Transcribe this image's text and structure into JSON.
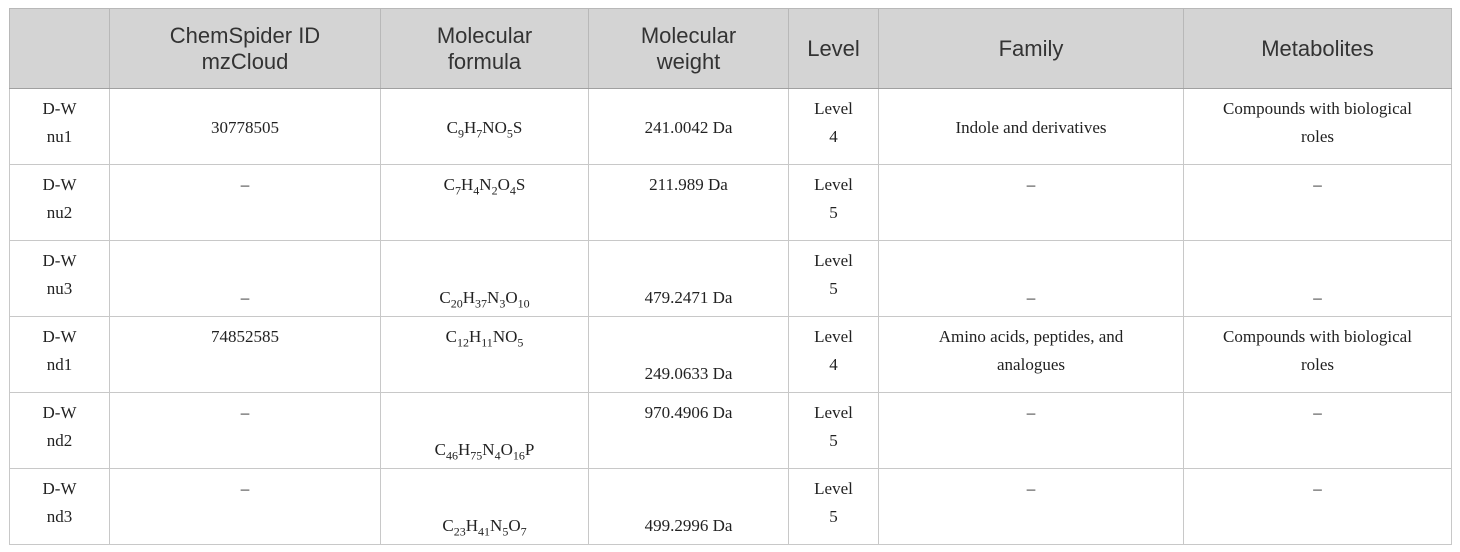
{
  "headers": {
    "sample": "",
    "chemspider": [
      "ChemSpider ID",
      "mzCloud"
    ],
    "formula": [
      "Molecular",
      "formula"
    ],
    "weight": [
      "Molecular",
      "weight"
    ],
    "level": "Level",
    "family": "Family",
    "metabolites": "Metabolites"
  },
  "rows": [
    {
      "sample": [
        "D-W",
        "nu1"
      ],
      "id": "30778505",
      "formula": [
        [
          "C",
          ""
        ],
        [
          "9",
          true
        ],
        [
          "H",
          ""
        ],
        [
          "7",
          true
        ],
        [
          "NO",
          ""
        ],
        [
          "5",
          true
        ],
        [
          "S",
          ""
        ]
      ],
      "weight": "241.0042 Da",
      "level": [
        "Level",
        "4"
      ],
      "family": [
        "Indole and derivatives"
      ],
      "metabolites": [
        "Compounds with biological",
        "roles"
      ]
    },
    {
      "sample": [
        "D-W",
        "nu2"
      ],
      "id": "–",
      "formula": [
        [
          "C",
          ""
        ],
        [
          "7",
          true
        ],
        [
          "H",
          ""
        ],
        [
          "4",
          true
        ],
        [
          "N",
          ""
        ],
        [
          "2",
          true
        ],
        [
          "O",
          ""
        ],
        [
          "4",
          true
        ],
        [
          "S",
          ""
        ]
      ],
      "weight": "211.989 Da",
      "level": [
        "Level",
        "5"
      ],
      "family": [
        "–"
      ],
      "metabolites": [
        "–"
      ]
    },
    {
      "sample": [
        "D-W",
        "nu3"
      ],
      "id": "–",
      "formula": [
        [
          "C",
          ""
        ],
        [
          "20",
          true
        ],
        [
          "H",
          ""
        ],
        [
          "37",
          true
        ],
        [
          "N",
          ""
        ],
        [
          "3",
          true
        ],
        [
          "O",
          ""
        ],
        [
          "10",
          true
        ]
      ],
      "weight": "479.2471 Da",
      "level": [
        "Level",
        "5"
      ],
      "family": [
        "–"
      ],
      "metabolites": [
        "–"
      ]
    },
    {
      "sample": [
        "D-W",
        "nd1"
      ],
      "id": "74852585",
      "formula": [
        [
          "C",
          ""
        ],
        [
          "12",
          true
        ],
        [
          "H",
          ""
        ],
        [
          "11",
          true
        ],
        [
          "NO",
          ""
        ],
        [
          "5",
          true
        ]
      ],
      "weight": "249.0633 Da",
      "level": [
        "Level",
        "4"
      ],
      "family": [
        "Amino acids, peptides, and",
        "analogues"
      ],
      "metabolites": [
        "Compounds with biological",
        "roles"
      ]
    },
    {
      "sample": [
        "D-W",
        "nd2"
      ],
      "id": "–",
      "formula": [
        [
          "C",
          ""
        ],
        [
          "46",
          true
        ],
        [
          "H",
          ""
        ],
        [
          "75",
          true
        ],
        [
          "N",
          ""
        ],
        [
          "4",
          true
        ],
        [
          "O",
          ""
        ],
        [
          "16",
          true
        ],
        [
          "P",
          ""
        ]
      ],
      "weight": "970.4906 Da",
      "level": [
        "Level",
        "5"
      ],
      "family": [
        "–"
      ],
      "metabolites": [
        "–"
      ]
    },
    {
      "sample": [
        "D-W",
        "nd3"
      ],
      "id": "–",
      "formula": [
        [
          "C",
          ""
        ],
        [
          "23",
          true
        ],
        [
          "H",
          ""
        ],
        [
          "41",
          true
        ],
        [
          "N",
          ""
        ],
        [
          "5",
          true
        ],
        [
          "O",
          ""
        ],
        [
          "7",
          true
        ]
      ],
      "weight": "499.2996 Da",
      "level": [
        "Level",
        "5"
      ],
      "family": [
        "–"
      ],
      "metabolites": [
        "–"
      ]
    }
  ],
  "colors": {
    "header_bg": "#d4d4d4",
    "border": "#c8c8c8"
  }
}
